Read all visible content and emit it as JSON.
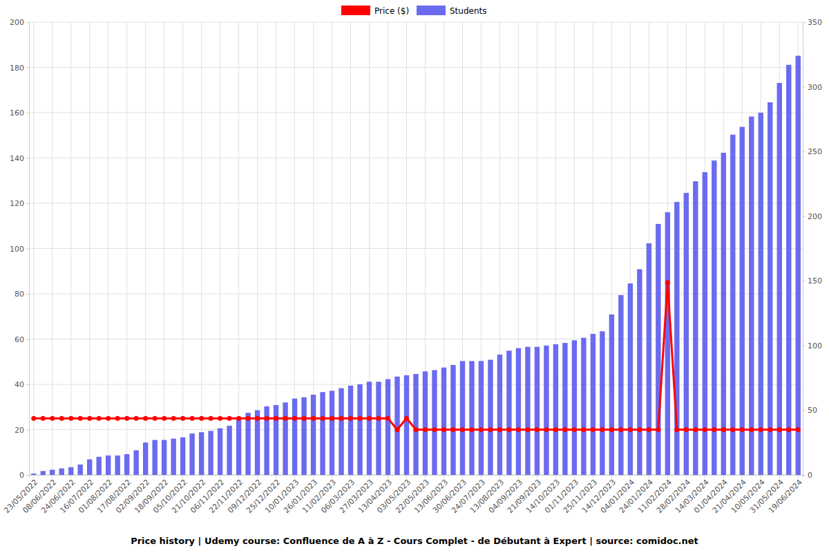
{
  "chart_data": {
    "type": "bar",
    "title": "Price history | Udemy course: Confluence de A à Z - Cours Complet - de Débutant à Expert | source: comidoc.net",
    "categories": [
      "23/05/2022",
      null,
      "08/06/2022",
      null,
      "24/06/2022",
      null,
      "16/07/2022",
      null,
      "01/08/2022",
      null,
      "17/08/2022",
      null,
      "02/09/2022",
      null,
      "18/09/2022",
      null,
      "05/10/2022",
      null,
      "21/10/2022",
      null,
      "06/11/2022",
      null,
      "22/11/2022",
      null,
      "09/12/2022",
      null,
      "25/12/2022",
      null,
      "10/01/2023",
      null,
      "26/01/2023",
      null,
      "11/02/2023",
      null,
      "06/03/2023",
      null,
      "27/03/2023",
      null,
      "13/04/2023",
      null,
      "03/05/2023",
      null,
      "22/05/2023",
      null,
      "13/06/2023",
      null,
      "30/06/2023",
      null,
      "24/07/2023",
      null,
      "13/08/2023",
      null,
      "04/09/2023",
      null,
      "21/09/2023",
      null,
      "14/10/2023",
      null,
      "01/11/2023",
      null,
      "25/11/2023",
      null,
      "14/12/2023",
      null,
      "04/01/2024",
      null,
      "24/01/2024",
      null,
      "11/02/2024",
      null,
      "28/02/2024",
      null,
      "14/03/2024",
      null,
      "01/04/2024",
      null,
      "21/04/2024",
      null,
      "10/05/2024",
      null,
      "31/05/2024",
      null,
      "19/06/2024"
    ],
    "series": [
      {
        "name": "Price ($)",
        "type": "line",
        "color": "#ff0000",
        "marker": "circle",
        "axis": "y",
        "values": [
          24.99,
          24.99,
          24.99,
          24.99,
          24.99,
          24.99,
          24.99,
          24.99,
          24.99,
          24.99,
          24.99,
          24.99,
          24.99,
          24.99,
          24.99,
          24.99,
          24.99,
          24.99,
          24.99,
          24.99,
          24.99,
          24.99,
          24.99,
          24.99,
          24.99,
          24.99,
          24.99,
          24.99,
          24.99,
          24.99,
          24.99,
          24.99,
          24.99,
          24.99,
          24.99,
          24.99,
          24.99,
          24.99,
          24.99,
          19.99,
          24.99,
          19.99,
          19.99,
          19.99,
          19.99,
          19.99,
          19.99,
          19.99,
          19.99,
          19.99,
          19.99,
          19.99,
          19.99,
          19.99,
          19.99,
          19.99,
          19.99,
          19.99,
          19.99,
          19.99,
          19.99,
          19.99,
          19.99,
          19.99,
          19.99,
          19.99,
          19.99,
          19.99,
          84.99,
          19.99,
          19.99,
          19.99,
          19.99,
          19.99,
          19.99,
          19.99,
          19.99,
          19.99,
          19.99,
          19.99,
          19.99,
          19.99,
          19.99
        ]
      },
      {
        "name": "Students",
        "type": "bar",
        "color": "#6b6bef",
        "axis": "y2",
        "values": [
          1,
          3,
          4,
          5,
          6,
          8,
          12,
          14,
          15,
          15,
          16,
          19,
          25,
          27,
          27,
          28,
          29,
          32,
          33,
          34,
          36,
          38,
          44,
          48,
          50,
          53,
          54,
          56,
          59,
          60,
          62,
          64,
          65,
          67,
          69,
          70,
          72,
          72,
          74,
          76,
          77,
          78,
          80,
          81,
          83,
          85,
          88,
          88,
          88,
          89,
          93,
          96,
          98,
          99,
          99,
          100,
          101,
          102,
          104,
          106,
          109,
          111,
          124,
          139,
          148,
          159,
          179,
          194,
          203,
          211,
          218,
          227,
          234,
          243,
          249,
          263,
          269,
          277,
          280,
          288,
          303,
          317,
          324
        ]
      }
    ],
    "ylim": [
      0,
      200
    ],
    "yticks": [
      0,
      20,
      40,
      60,
      80,
      100,
      120,
      140,
      160,
      180,
      200
    ],
    "y2lim": [
      0,
      350
    ],
    "y2ticks": [
      0,
      50,
      100,
      150,
      200,
      250,
      300,
      350
    ],
    "grid": true,
    "legend": "top"
  }
}
